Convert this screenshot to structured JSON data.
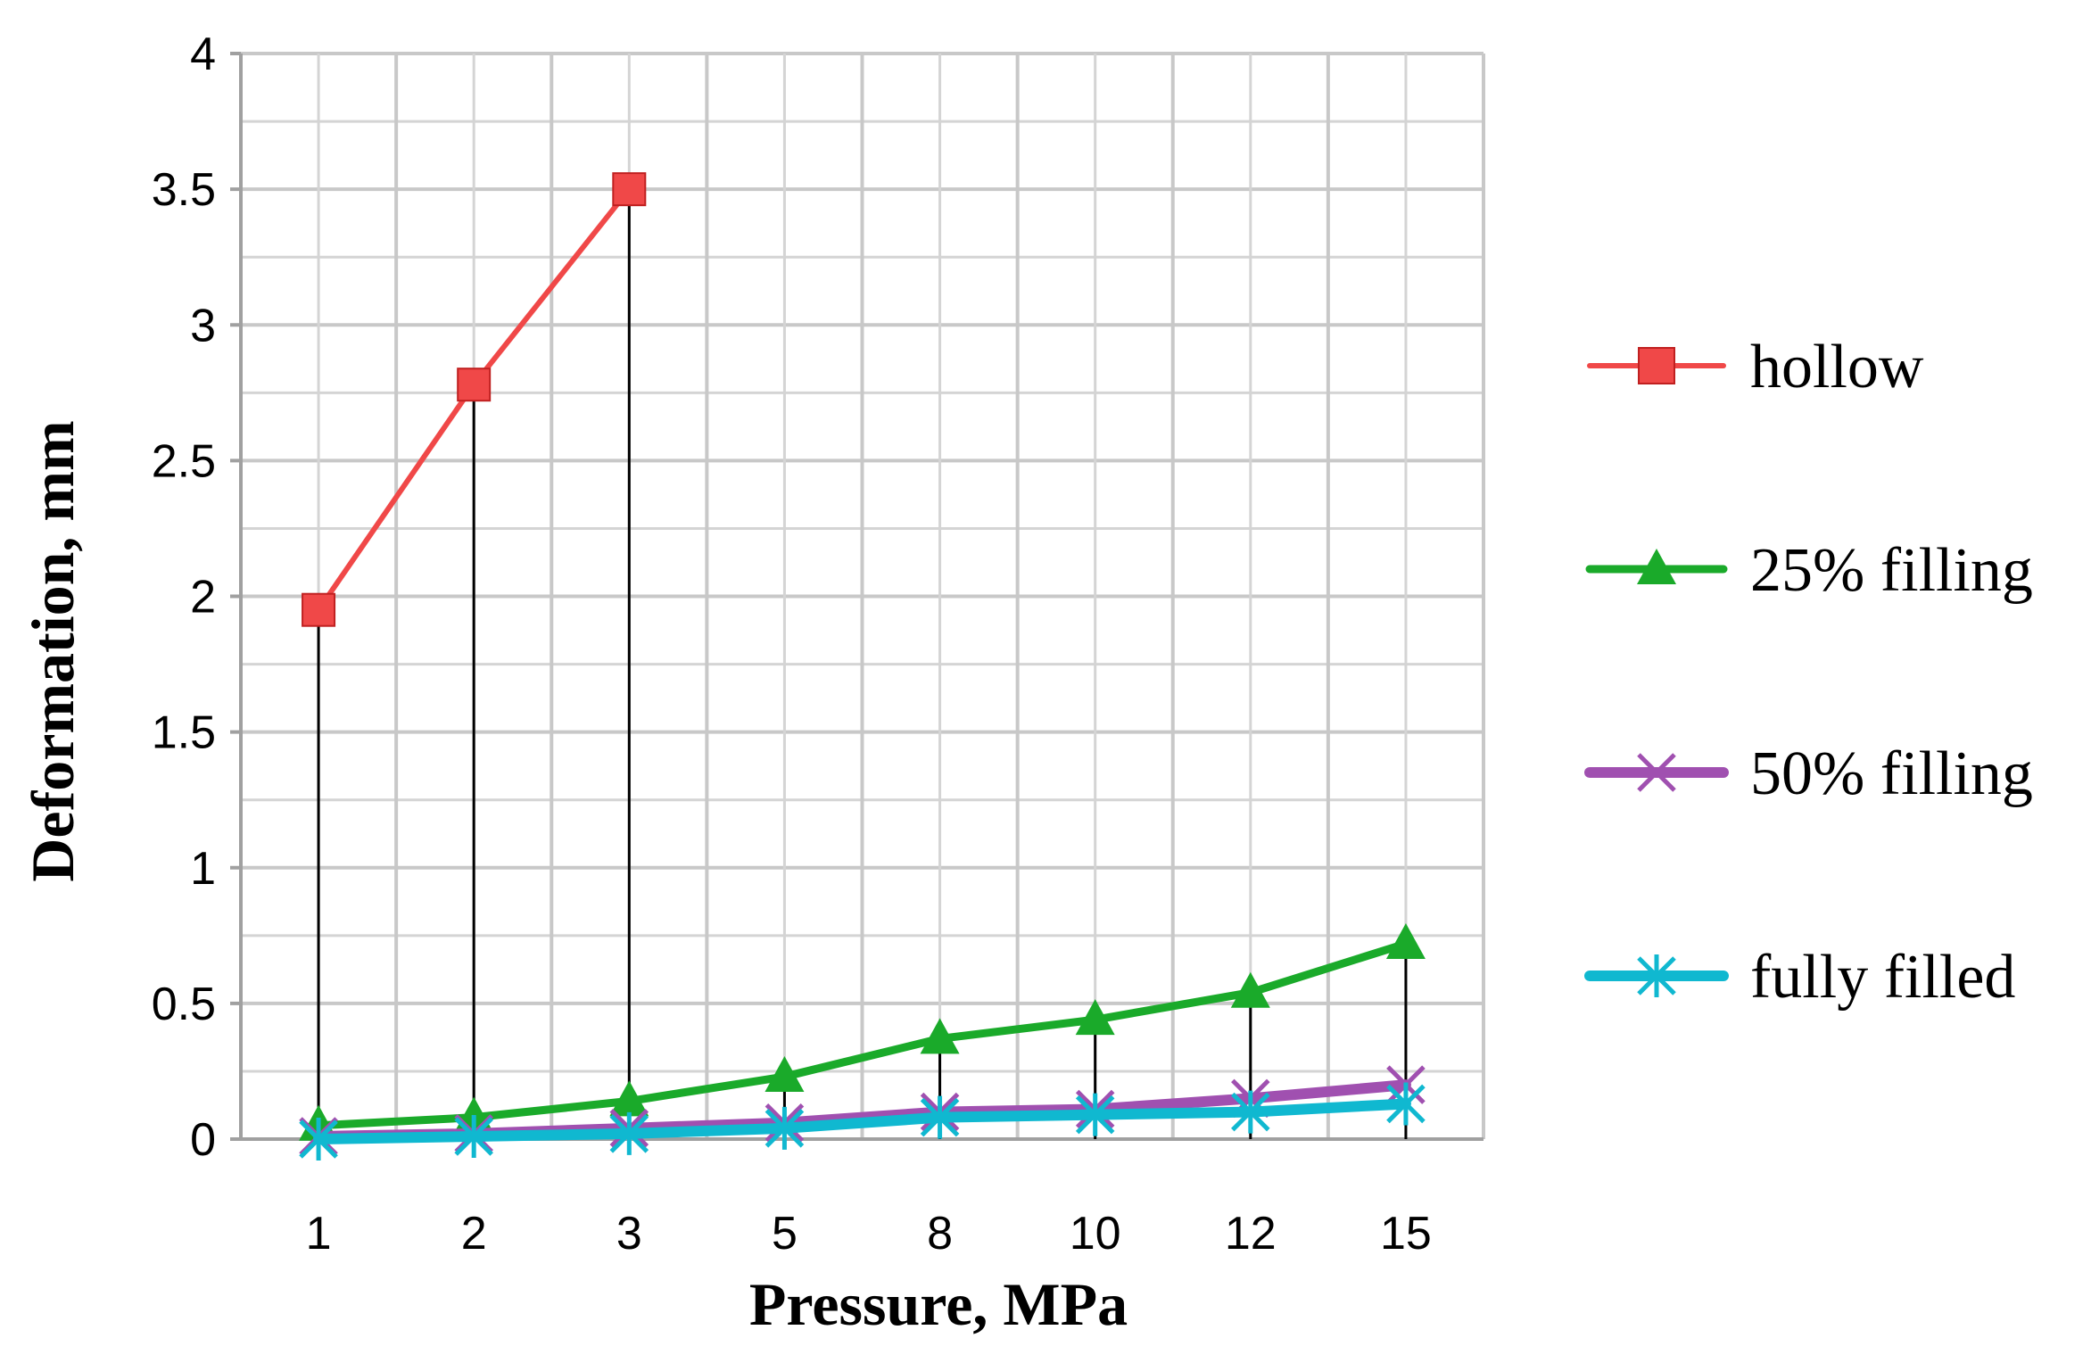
{
  "chart_data": {
    "type": "line",
    "title": "",
    "xlabel": "Pressure, MPa",
    "ylabel": "Deformation, mm",
    "categories": [
      "1",
      "2",
      "3",
      "5",
      "8",
      "10",
      "12",
      "15"
    ],
    "ylim": [
      0,
      4
    ],
    "yticks": [
      "0",
      "0.5",
      "1",
      "1.5",
      "2",
      "2.5",
      "3",
      "3.5",
      "4"
    ],
    "grid": true,
    "drop_lines": true,
    "legend_position": "right",
    "series": [
      {
        "name": "hollow",
        "color": "#f04848",
        "marker": "square",
        "values": [
          1.95,
          2.78,
          3.5,
          null,
          null,
          null,
          null,
          null
        ]
      },
      {
        "name": "25% filling",
        "color": "#1aaa2a",
        "marker": "triangle",
        "values": [
          0.05,
          0.08,
          0.14,
          0.23,
          0.37,
          0.44,
          0.54,
          0.72
        ]
      },
      {
        "name": "50% filling",
        "color": "#a050b0",
        "marker": "x",
        "values": [
          0.01,
          0.02,
          0.04,
          0.06,
          0.1,
          0.11,
          0.15,
          0.2
        ]
      },
      {
        "name": "fully filled",
        "color": "#10b8d0",
        "marker": "star",
        "values": [
          0.0,
          0.01,
          0.02,
          0.04,
          0.08,
          0.09,
          0.1,
          0.13
        ]
      }
    ]
  }
}
